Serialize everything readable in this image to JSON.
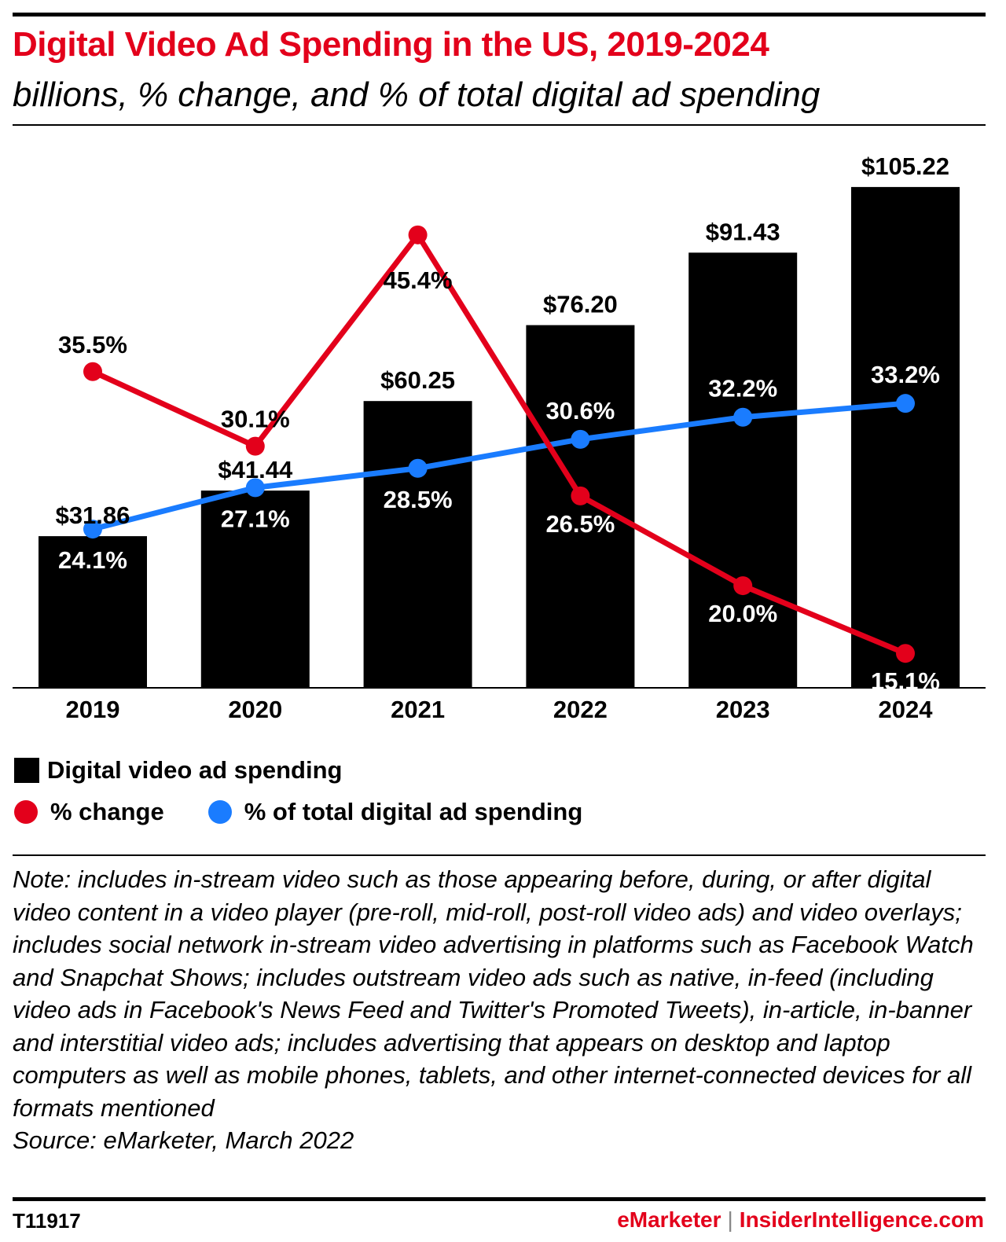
{
  "header": {
    "title": "Digital Video Ad Spending in the US, 2019-2024",
    "subtitle": "billions, % change, and % of total digital ad spending"
  },
  "colors": {
    "title": "#e3001b",
    "bars": "#000000",
    "pct_change": "#e3001b",
    "pct_total": "#1a7cff",
    "brand_red": "#e3001b"
  },
  "chart_data": {
    "type": "bar",
    "categories": [
      "2019",
      "2020",
      "2021",
      "2022",
      "2023",
      "2024"
    ],
    "ylim": [
      0,
      110
    ],
    "series": [
      {
        "name": "Digital video ad spending",
        "type": "bar",
        "values": [
          31.86,
          41.44,
          60.25,
          76.2,
          91.43,
          105.22
        ],
        "labels": [
          "$31.86",
          "$41.44",
          "$60.25",
          "$76.20",
          "$91.43",
          "$105.22"
        ]
      },
      {
        "name": "% change",
        "type": "line",
        "values": [
          35.5,
          30.1,
          45.4,
          26.5,
          20.0,
          15.1
        ],
        "labels": [
          "35.5%",
          "30.1%",
          "45.4%",
          "26.5%",
          "20.0%",
          "15.1%"
        ]
      },
      {
        "name": "% of total digital ad spending",
        "type": "line",
        "values": [
          24.1,
          27.1,
          28.5,
          30.6,
          32.2,
          33.2
        ],
        "labels": [
          "24.1%",
          "27.1%",
          "28.5%",
          "30.6%",
          "32.2%",
          "33.2%"
        ]
      }
    ],
    "grid": false,
    "legend_position": "bottom-left"
  },
  "legend": {
    "bars": "Digital video ad spending",
    "pct_change": "% change",
    "pct_total": "% of total digital ad spending"
  },
  "note": "Note: includes in-stream video such as those appearing before, during, or after digital video content in a video player (pre-roll, mid-roll, post-roll video ads) and video overlays; includes social network in-stream video advertising in platforms such as Facebook Watch and Snapchat Shows; includes outstream video ads such as native, in-feed (including video ads in Facebook's News Feed and Twitter's Promoted Tweets), in-article, in-banner and interstitial video ads; includes advertising that appears on desktop and laptop computers as well as mobile phones, tablets, and other internet-connected devices for all formats mentioned",
  "source": "Source: eMarketer, March 2022",
  "footer": {
    "chart_id": "T11917",
    "brand_left": "eMarketer",
    "separator": "|",
    "brand_right": "InsiderIntelligence.com"
  }
}
